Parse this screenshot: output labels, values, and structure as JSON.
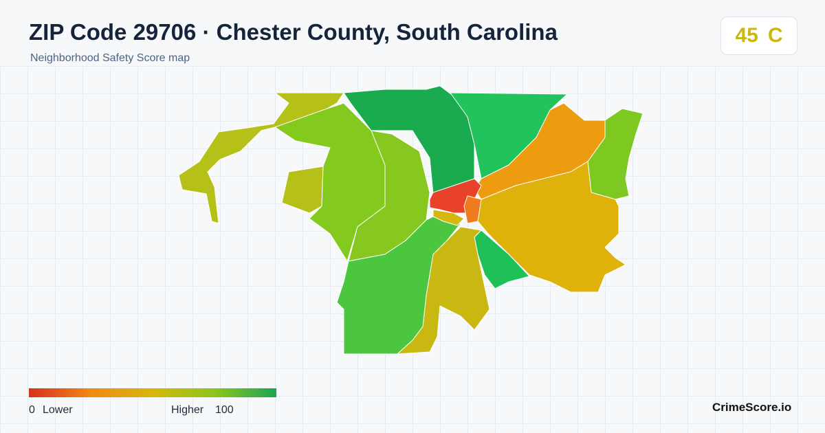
{
  "header": {
    "title": "ZIP Code 29706 · Chester County, South Carolina",
    "subtitle": "Neighborhood Safety Score map"
  },
  "badge": {
    "score": 45,
    "grade": "C"
  },
  "legend": {
    "min": 0,
    "low_label": "Lower",
    "high_label": "Higher",
    "max": 100
  },
  "footer": {
    "brand": "CrimeScore.io"
  }
}
